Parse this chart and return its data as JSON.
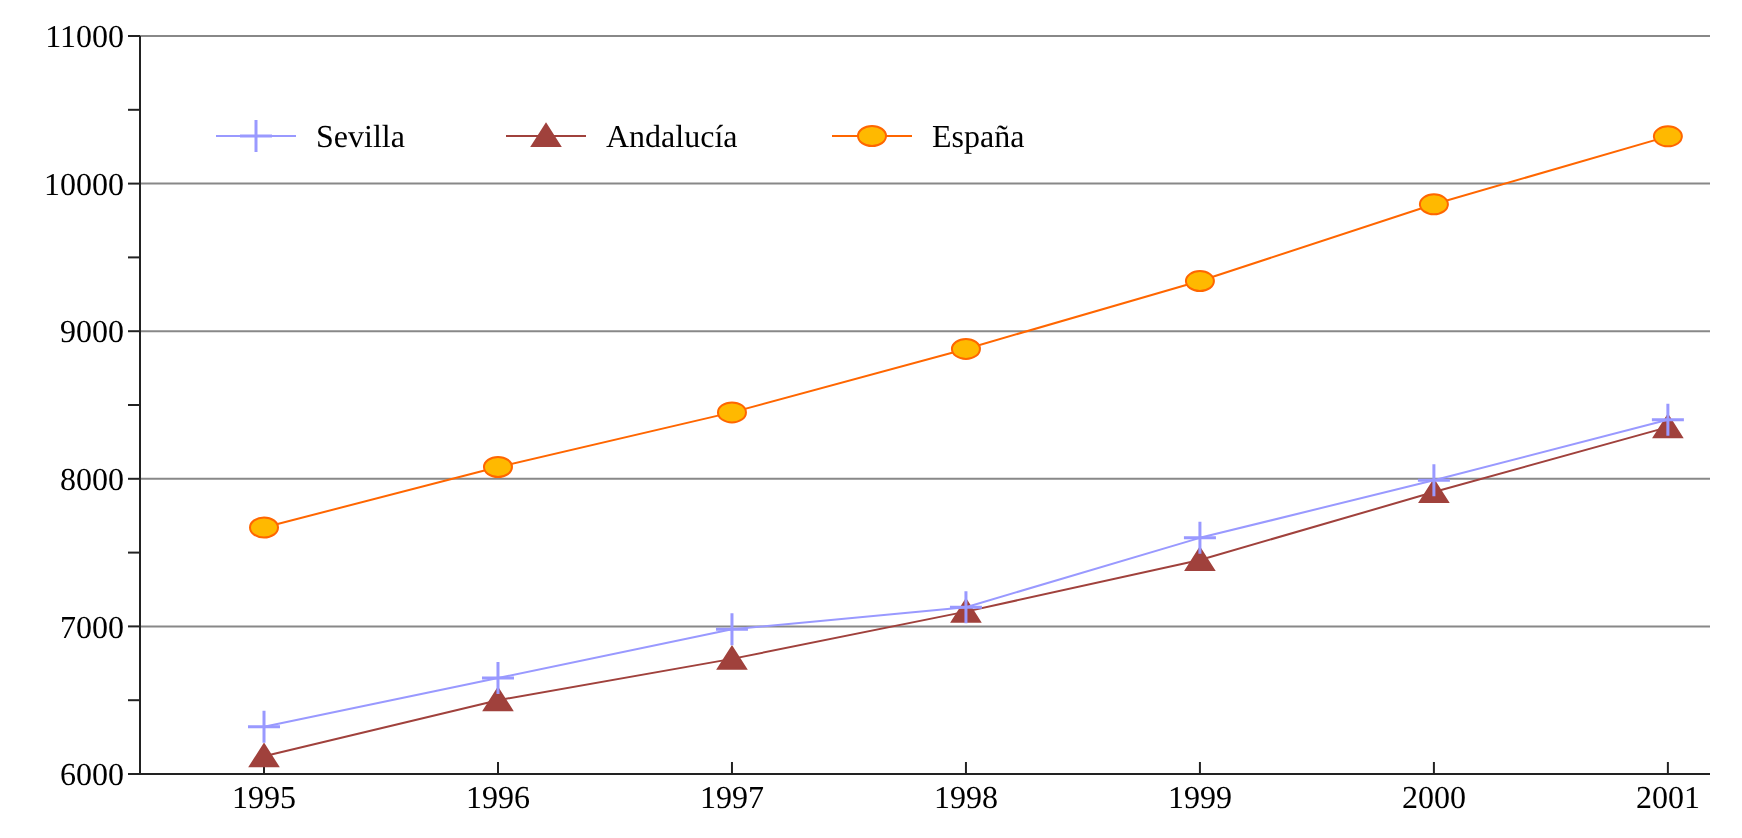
{
  "chart_data": {
    "type": "line",
    "x": [
      1995,
      1996,
      1997,
      1998,
      1999,
      2000,
      2001
    ],
    "xlim": [
      1994.47,
      2001.18
    ],
    "xticks": [
      1995,
      1996,
      1997,
      1998,
      1999,
      2000,
      2001
    ],
    "ylim": [
      6000,
      11000
    ],
    "yticks": [
      6000,
      {
        "value": 6500,
        "label": null
      },
      7000,
      {
        "value": 7500,
        "label": null
      },
      8000,
      {
        "value": 8500,
        "label": null
      },
      9000,
      {
        "value": 9500,
        "label": null
      },
      10000,
      {
        "value": 10500,
        "label": null
      },
      11000
    ],
    "grid": "y",
    "legend": "top left",
    "series": [
      {
        "name": "Sevilla",
        "color": "#9999ff",
        "marker": "cross",
        "values": [
          6320,
          6650,
          6980,
          7130,
          7600,
          7990,
          8400
        ]
      },
      {
        "name": "Andalucía",
        "color": "#a0413c",
        "marker": "triangle",
        "values": [
          6120,
          6500,
          6780,
          7100,
          7450,
          7910,
          8350
        ]
      },
      {
        "name": "España",
        "color": "#ff6600",
        "marker": "circle",
        "values": [
          7670,
          8080,
          8450,
          8880,
          9340,
          9860,
          10320
        ]
      }
    ]
  }
}
